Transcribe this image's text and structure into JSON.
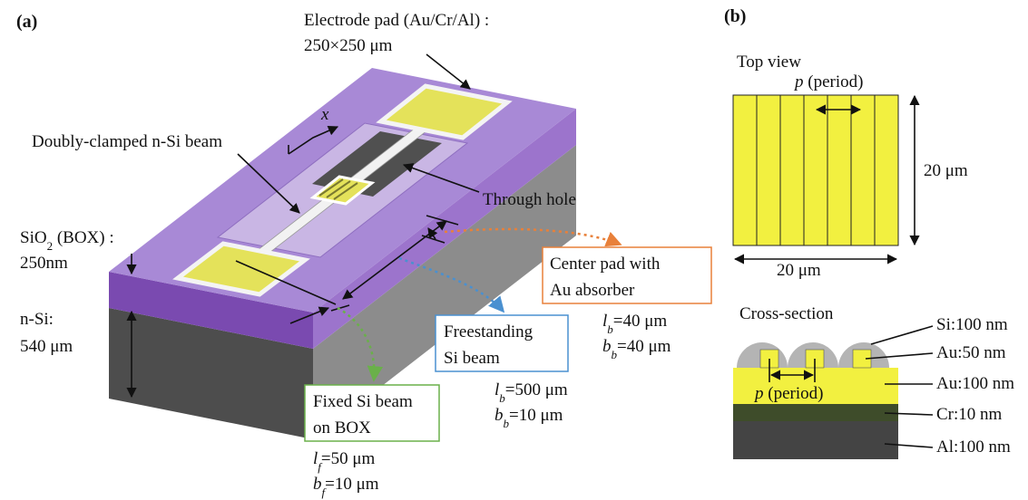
{
  "panel_a": {
    "label": "(a)",
    "electrode_pad": {
      "line1": "Electrode pad (Au/Cr/Al) :",
      "line2": "250×250 μm"
    },
    "beam_label": "Doubly-clamped n-Si beam",
    "axis_label": "x",
    "through_hole": "Through hole",
    "box_layer": {
      "text": "SiO",
      "sub": "2",
      "rest": " (BOX) :",
      "line2": "250nm"
    },
    "n_si": {
      "line1": "n-Si:",
      "line2": "540 μm"
    },
    "center_pad": {
      "lines": [
        "Center pad with",
        "Au absorber"
      ],
      "params": [
        {
          "symbol": "l",
          "sub": "b",
          "value": "=40 μm"
        },
        {
          "symbol": "b",
          "sub": "b",
          "value": "=40 μm"
        }
      ]
    },
    "freestanding": {
      "lines": [
        "Freestanding",
        "Si beam"
      ],
      "params": [
        {
          "symbol": "l",
          "sub": "b",
          "value": "=500 μm"
        },
        {
          "symbol": "b",
          "sub": "b",
          "value": "=10 μm"
        }
      ]
    },
    "fixed": {
      "lines": [
        "Fixed Si beam",
        "on BOX"
      ],
      "params": [
        {
          "symbol": "l",
          "sub": "f",
          "value": "=50 μm"
        },
        {
          "symbol": "b",
          "sub": "f",
          "value": "=10 μm"
        }
      ]
    }
  },
  "panel_b": {
    "label": "(b)",
    "top_view": {
      "title": "Top view",
      "period": {
        "symbol": "p",
        "rest": " (period)"
      },
      "height": "20 μm",
      "width": "20 μm"
    },
    "cross_section": {
      "title": "Cross-section",
      "period": {
        "symbol": "p",
        "rest": " (period)"
      },
      "layers": [
        "Si:100 nm",
        "Au:50 nm",
        "Au:100 nm",
        "Cr:10 nm",
        "Al:100 nm"
      ]
    }
  }
}
